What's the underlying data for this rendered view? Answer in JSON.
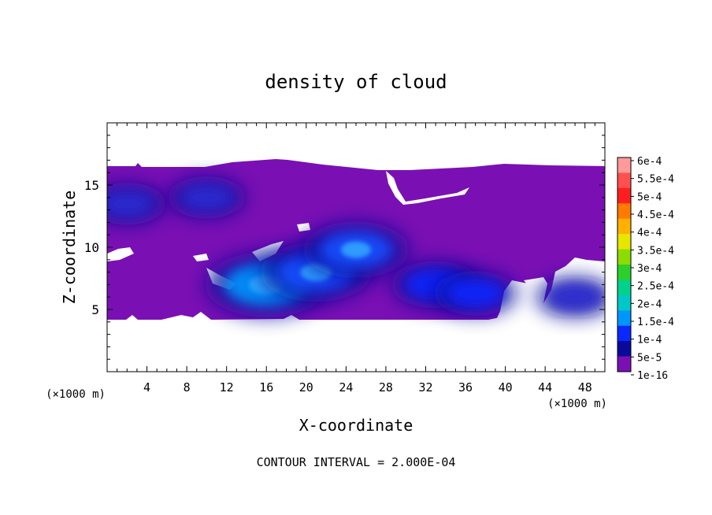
{
  "chart_data": {
    "type": "heatmap",
    "title": "density of cloud",
    "xlabel": "X-coordinate",
    "ylabel": "Z-coordinate",
    "x_unit": "(×1000 m)",
    "y_unit": "(×1000 m)",
    "xlim": [
      0,
      50
    ],
    "ylim": [
      0,
      20
    ],
    "x_ticks": [
      4,
      8,
      12,
      16,
      20,
      24,
      28,
      32,
      36,
      40,
      44,
      48
    ],
    "y_ticks": [
      5,
      10,
      15
    ],
    "grid": false,
    "footer": "CONTOUR INTERVAL = 2.000E-04",
    "colorbar": {
      "labels": [
        "6e-4",
        "5.5e-4",
        "5e-4",
        "4.5e-4",
        "4e-4",
        "3.5e-4",
        "3e-4",
        "2.5e-4",
        "2e-4",
        "1.5e-4",
        "1e-4",
        "5e-5",
        "1e-16"
      ],
      "colors": [
        "#ff9a9a",
        "#ff5050",
        "#ff1e1e",
        "#ff7a00",
        "#ffb000",
        "#e6e600",
        "#8cdc00",
        "#2bd02b",
        "#00d28c",
        "#00c8c8",
        "#0096ff",
        "#0a28ff",
        "#0a0a9a",
        "#7a10b4"
      ]
    },
    "cloud_region": {
      "x_range": [
        0,
        50
      ],
      "z_range": [
        4.2,
        16.8
      ]
    },
    "cores": [
      {
        "x": 16,
        "z": 7.0,
        "level": 0.00014
      },
      {
        "x": 21,
        "z": 8.0,
        "level": 0.00012
      },
      {
        "x": 25,
        "z": 9.8,
        "level": 0.00011
      },
      {
        "x": 33,
        "z": 7.0,
        "level": 8e-05
      },
      {
        "x": 37,
        "z": 6.3,
        "level": 7e-05
      },
      {
        "x": 10,
        "z": 14.0,
        "level": 6e-05
      },
      {
        "x": 2,
        "z": 13.5,
        "level": 6e-05
      },
      {
        "x": 47,
        "z": 6.0,
        "level": 6e-05
      }
    ]
  }
}
